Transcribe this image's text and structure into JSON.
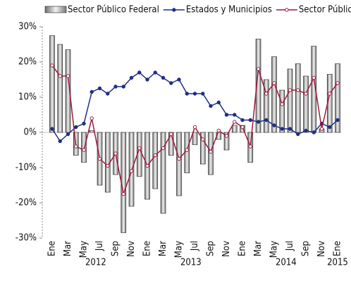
{
  "chart_data": {
    "type": "bar-line",
    "categories": [
      "Ene",
      null,
      "Mar",
      null,
      "May",
      null,
      "Jul",
      null,
      "Sep",
      null,
      "Nov",
      null,
      "Ene",
      null,
      "Mar",
      null,
      "May",
      null,
      "Jul",
      null,
      "Sep",
      null,
      "Nov",
      null,
      "Ene",
      null,
      "Mar",
      null,
      "May",
      null,
      "Jul",
      null,
      "Sep",
      null,
      "Nov",
      null,
      "Ene"
    ],
    "x_groups": [
      "2012",
      "2013",
      "2014",
      "2015"
    ],
    "series": [
      {
        "name": "Sector Público Federal",
        "kind": "bar",
        "color": "#a6a6a6",
        "values": [
          27.5,
          25,
          23.5,
          -6.5,
          -8.5,
          0.5,
          -15,
          -17,
          -12,
          -28.5,
          -21,
          -12.5,
          -19,
          -16,
          -23,
          -6.5,
          -18,
          -11.5,
          -3.5,
          -9,
          -12,
          -2,
          -5,
          2,
          2,
          -8.5,
          26.5,
          15,
          21.5,
          12,
          18,
          19.5,
          16,
          24.5,
          1,
          16.5,
          19.5
        ]
      },
      {
        "name": "Estados y Municipios",
        "kind": "line",
        "color": "#1f2f86",
        "values": [
          1,
          -2.5,
          -0.5,
          1.5,
          2.5,
          11.5,
          12.5,
          11,
          13,
          13,
          15.5,
          17,
          15,
          17,
          15.5,
          14,
          15,
          11,
          11,
          11,
          7.5,
          8.5,
          5,
          5,
          3.5,
          3.5,
          3,
          3.5,
          2,
          1,
          1,
          -0.5,
          0.5,
          0,
          2.5,
          1.5,
          3.5
        ]
      },
      {
        "name": "Sector Público",
        "kind": "line",
        "color": "#9e1a3c",
        "values": [
          19,
          16,
          16,
          -4,
          -5,
          4,
          -7.5,
          -9.5,
          -6,
          -17.5,
          -11,
          -4.5,
          -9.5,
          -6.5,
          -4.5,
          -0.5,
          -7.5,
          -5,
          1.5,
          -2,
          -5.5,
          0.5,
          -1,
          3,
          1.5,
          -4,
          18,
          11,
          14,
          8,
          12,
          12,
          11,
          15.5,
          1,
          11,
          14
        ]
      }
    ],
    "ylim": [
      -30,
      30
    ],
    "yticks": [
      {
        "value": -30,
        "label": "-30%"
      },
      {
        "value": -20,
        "label": "-20%"
      },
      {
        "value": -10,
        "label": "-10%"
      },
      {
        "value": 0,
        "label": "0%"
      },
      {
        "value": 10,
        "label": "10%"
      },
      {
        "value": 20,
        "label": "20%"
      },
      {
        "value": 30,
        "label": "30%"
      }
    ],
    "legend": "top"
  }
}
